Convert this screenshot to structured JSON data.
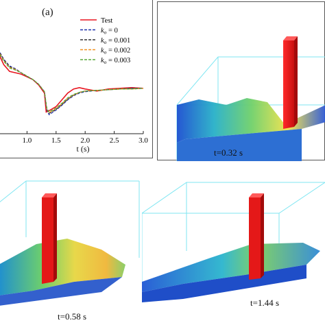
{
  "panel_a": {
    "label": "(a)",
    "chart_data": {
      "type": "line",
      "xlabel": "t (s)",
      "ylabel": "",
      "xlim": [
        0.5,
        3.0
      ],
      "x_ticks": [
        "1.0",
        "1.5",
        "2.0",
        "2.5",
        "3.0"
      ],
      "legend_placement": "top-right",
      "series": [
        {
          "name": "Test",
          "color": "#e8141e",
          "dash": "solid",
          "x": [
            0.5,
            0.6,
            0.7,
            0.8,
            0.9,
            1.0,
            1.1,
            1.2,
            1.3,
            1.33,
            1.4,
            1.5,
            1.6,
            1.7,
            1.8,
            1.9,
            2.0,
            2.2,
            2.4,
            2.6,
            2.8,
            3.0
          ],
          "y": [
            0.9,
            0.72,
            0.62,
            0.6,
            0.58,
            0.54,
            0.5,
            0.42,
            0.3,
            0.02,
            0.05,
            0.1,
            0.2,
            0.3,
            0.36,
            0.38,
            0.36,
            0.33,
            0.36,
            0.37,
            0.38,
            0.37
          ]
        },
        {
          "name": "k_o = 0",
          "legend_sub": "o",
          "legend_value": " = 0",
          "color": "#1d2fa8",
          "dash": "4,2",
          "x": [
            0.5,
            0.6,
            0.7,
            0.8,
            0.9,
            1.0,
            1.1,
            1.2,
            1.3,
            1.34,
            1.38,
            1.5,
            1.6,
            1.7,
            1.8,
            1.9,
            2.0,
            2.2,
            2.4,
            2.6,
            2.8,
            3.0
          ],
          "y": [
            0.95,
            0.8,
            0.7,
            0.66,
            0.6,
            0.55,
            0.5,
            0.43,
            0.32,
            0.05,
            -0.02,
            0.05,
            0.12,
            0.2,
            0.26,
            0.3,
            0.32,
            0.34,
            0.35,
            0.36,
            0.37,
            0.37
          ]
        },
        {
          "name": "k_o = 0.001",
          "legend_sub": "o",
          "legend_value": " = 0.001",
          "color": "#333333",
          "dash": "4,2",
          "x": [
            0.5,
            0.6,
            0.7,
            0.8,
            0.9,
            1.0,
            1.1,
            1.2,
            1.3,
            1.34,
            1.38,
            1.5,
            1.6,
            1.7,
            1.8,
            1.9,
            2.0,
            2.2,
            2.4,
            2.6,
            2.8,
            3.0
          ],
          "y": [
            0.94,
            0.79,
            0.69,
            0.65,
            0.6,
            0.55,
            0.5,
            0.43,
            0.32,
            0.06,
            0.0,
            0.06,
            0.13,
            0.21,
            0.27,
            0.31,
            0.33,
            0.34,
            0.35,
            0.36,
            0.37,
            0.37
          ]
        },
        {
          "name": "k_o = 0.002",
          "legend_sub": "o",
          "legend_value": " = 0.002",
          "color": "#f0901e",
          "dash": "4,2",
          "x": [
            0.5,
            0.6,
            0.7,
            0.8,
            0.9,
            1.0,
            1.1,
            1.2,
            1.3,
            1.34,
            1.38,
            1.5,
            1.6,
            1.7,
            1.8,
            1.9,
            2.0,
            2.2,
            2.4,
            2.6,
            2.8,
            3.0
          ],
          "y": [
            0.93,
            0.78,
            0.68,
            0.65,
            0.6,
            0.55,
            0.5,
            0.43,
            0.32,
            0.07,
            0.01,
            0.07,
            0.14,
            0.22,
            0.27,
            0.31,
            0.33,
            0.34,
            0.35,
            0.36,
            0.36,
            0.37
          ]
        },
        {
          "name": "k_o = 0.003",
          "legend_sub": "o",
          "legend_value": " = 0.003",
          "color": "#5aa83a",
          "dash": "4,2",
          "x": [
            0.5,
            0.6,
            0.7,
            0.8,
            0.9,
            1.0,
            1.1,
            1.2,
            1.3,
            1.34,
            1.38,
            1.5,
            1.6,
            1.7,
            1.8,
            1.9,
            2.0,
            2.2,
            2.4,
            2.6,
            2.8,
            3.0
          ],
          "y": [
            0.92,
            0.77,
            0.67,
            0.64,
            0.6,
            0.55,
            0.5,
            0.43,
            0.32,
            0.08,
            0.02,
            0.08,
            0.15,
            0.23,
            0.28,
            0.31,
            0.33,
            0.34,
            0.35,
            0.36,
            0.36,
            0.37
          ]
        }
      ]
    }
  },
  "snapshots": [
    {
      "time_label": "t=0.32 s"
    },
    {
      "time_label": "t=0.58 s"
    },
    {
      "time_label": "t=1.44 s"
    }
  ]
}
